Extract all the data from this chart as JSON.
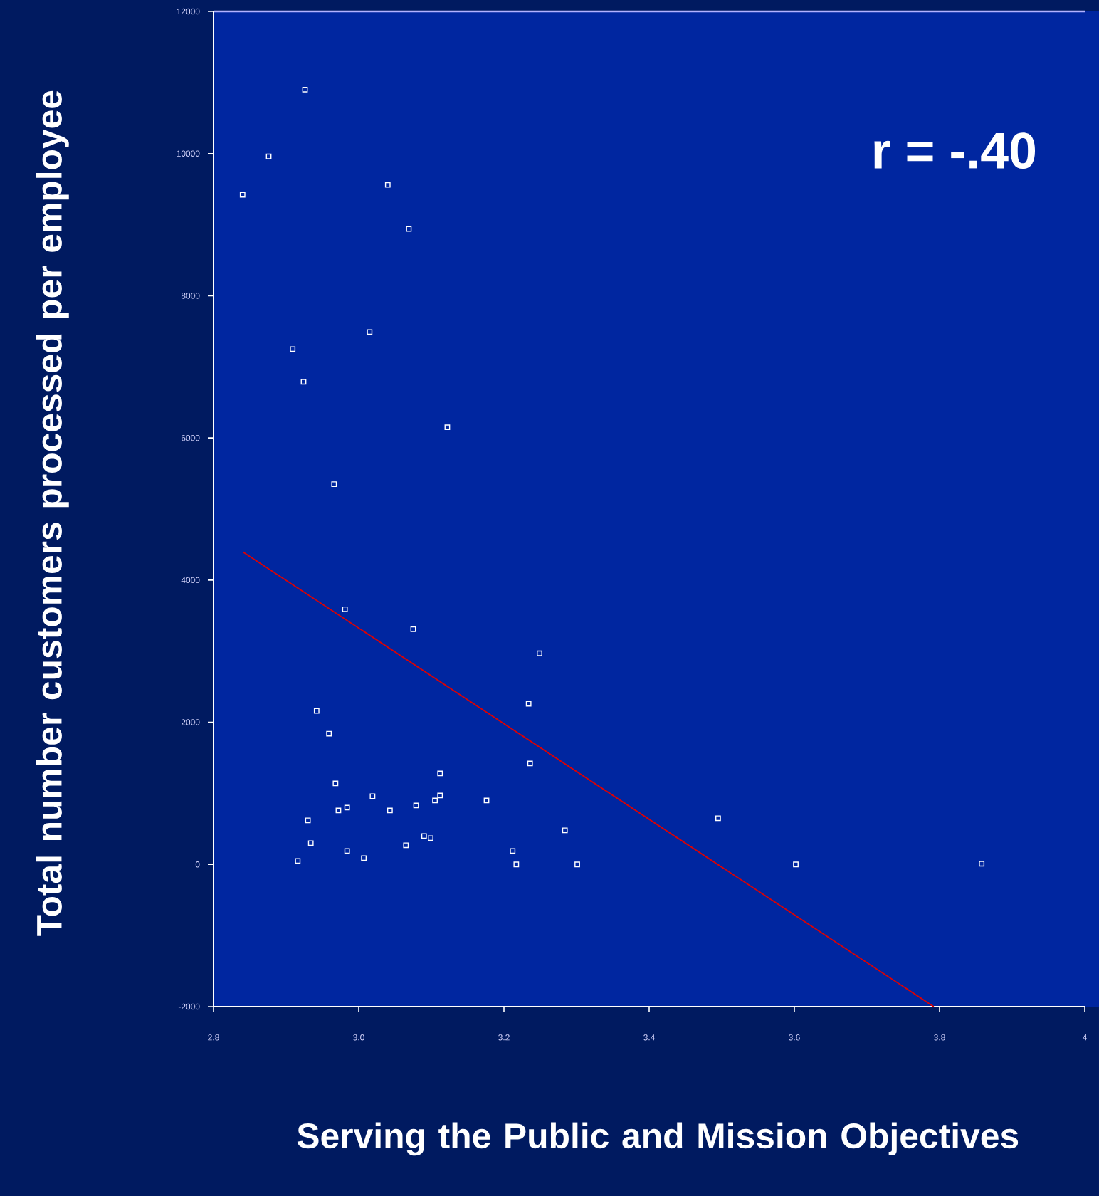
{
  "chart_data": {
    "type": "scatter",
    "xlabel": "Serving the Public and Mission Objectives",
    "ylabel": "Total number customers processed per employee",
    "annotations": [
      "r = -.40"
    ],
    "xlim": [
      2.8,
      4.0
    ],
    "ylim": [
      -2000,
      12000
    ],
    "xticks": [
      2.8,
      {
        "value": 3.0,
        "label": "3.0"
      },
      3.2,
      3.4,
      3.6,
      3.8,
      4
    ],
    "yticks": [
      -2000,
      0,
      2000,
      4000,
      6000,
      8000,
      10000,
      12000
    ],
    "marker": "square",
    "series": [
      {
        "type": "scatter",
        "color": "#ffffff",
        "x": [
          2.84,
          2.876,
          2.926,
          3.04,
          3.069,
          2.909,
          3.015,
          2.924,
          3.122,
          2.966,
          2.981,
          3.075,
          3.249,
          3.234,
          2.942,
          2.959,
          3.236,
          3.112,
          2.968,
          3.019,
          3.112,
          3.105,
          3.176,
          3.079,
          2.972,
          2.984,
          3.043,
          2.93,
          3.284,
          2.934,
          2.984,
          3.065,
          3.09,
          3.099,
          3.007,
          2.916,
          3.212,
          3.217,
          3.301,
          3.495,
          3.602,
          3.858
        ],
        "values": [
          9420,
          9960,
          10900,
          9560,
          8940,
          7250,
          7490,
          6790,
          6150,
          5350,
          3590,
          3310,
          2970,
          2260,
          2160,
          1840,
          1420,
          1280,
          1140,
          960,
          970,
          900,
          900,
          830,
          760,
          800,
          760,
          620,
          480,
          300,
          190,
          270,
          400,
          370,
          90,
          50,
          190,
          0,
          0,
          650,
          0,
          10
        ]
      },
      {
        "type": "line",
        "marker": "none",
        "color": "#e00000",
        "x": [
          2.84,
          3.792
        ],
        "values": [
          4400,
          -2000
        ]
      }
    ]
  }
}
